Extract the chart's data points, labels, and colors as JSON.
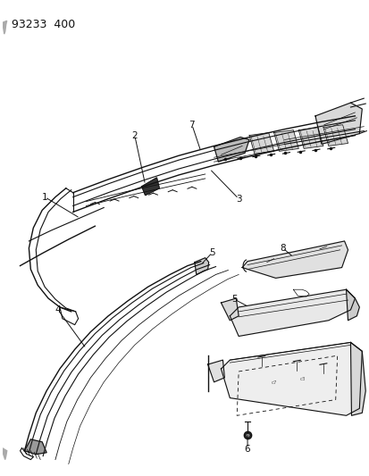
{
  "title": "93233  400",
  "bg": "#ffffff",
  "fg": "#111111",
  "fig_w": 4.14,
  "fig_h": 5.33,
  "dpi": 100
}
